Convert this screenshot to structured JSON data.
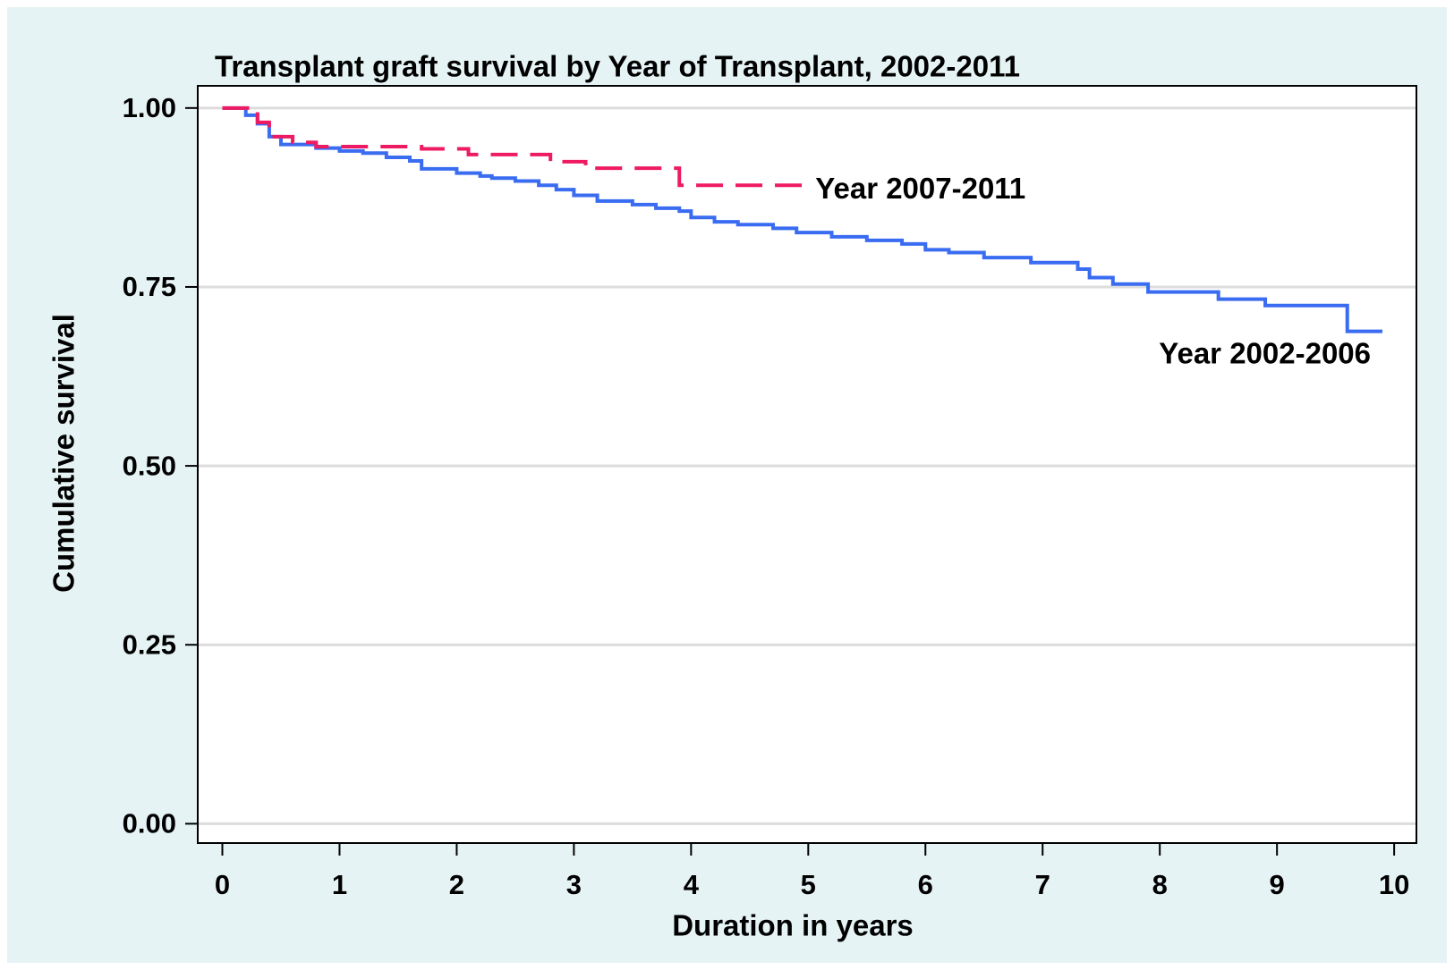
{
  "chart_data": {
    "type": "step",
    "title": "Transplant graft survival by Year of Transplant, 2002-2011",
    "x_label": "Duration in years",
    "y_label": "Cumulative survival",
    "xlim": [
      -0.21,
      10.19
    ],
    "ylim": [
      -0.027,
      1.031
    ],
    "xticks": [
      0,
      1,
      2,
      3,
      4,
      5,
      6,
      7,
      8,
      9,
      10
    ],
    "yticks": [
      {
        "value": 0,
        "label": "0.00"
      },
      {
        "value": 0.25,
        "label": "0.25"
      },
      {
        "value": 0.5,
        "label": "0.50"
      },
      {
        "value": 0.75,
        "label": "0.75"
      },
      {
        "value": 1,
        "label": "1.00"
      }
    ],
    "grid": true,
    "series": [
      {
        "name": "Year 2002-2006",
        "color": "#3a6cf2",
        "dash": false,
        "x": [
          0,
          0.2,
          0.3,
          0.4,
          0.5,
          0.8,
          1.0,
          1.2,
          1.4,
          1.6,
          1.7,
          2.0,
          2.2,
          2.3,
          2.5,
          2.7,
          2.85,
          3.0,
          3.2,
          3.5,
          3.7,
          3.9,
          4.0,
          4.2,
          4.4,
          4.7,
          4.9,
          5.2,
          5.5,
          5.8,
          6.0,
          6.2,
          6.5,
          6.9,
          7.3,
          7.4,
          7.6,
          7.9,
          8.5,
          8.9,
          9.6,
          9.9
        ],
        "values": [
          1.0,
          0.99,
          0.978,
          0.96,
          0.949,
          0.944,
          0.94,
          0.937,
          0.931,
          0.926,
          0.915,
          0.909,
          0.905,
          0.902,
          0.898,
          0.892,
          0.886,
          0.878,
          0.87,
          0.865,
          0.86,
          0.856,
          0.847,
          0.841,
          0.837,
          0.832,
          0.826,
          0.82,
          0.815,
          0.81,
          0.802,
          0.798,
          0.791,
          0.784,
          0.775,
          0.763,
          0.754,
          0.743,
          0.733,
          0.724,
          0.688,
          0.688
        ]
      },
      {
        "name": "Year 2007-2011",
        "color": "#ee1a62",
        "dash": true,
        "x": [
          0,
          0.3,
          0.4,
          0.6,
          0.8,
          1.7,
          2.1,
          2.8,
          3.1,
          3.9,
          5.0
        ],
        "values": [
          1.0,
          0.98,
          0.96,
          0.952,
          0.946,
          0.943,
          0.935,
          0.925,
          0.916,
          0.892,
          0.892
        ]
      }
    ]
  }
}
